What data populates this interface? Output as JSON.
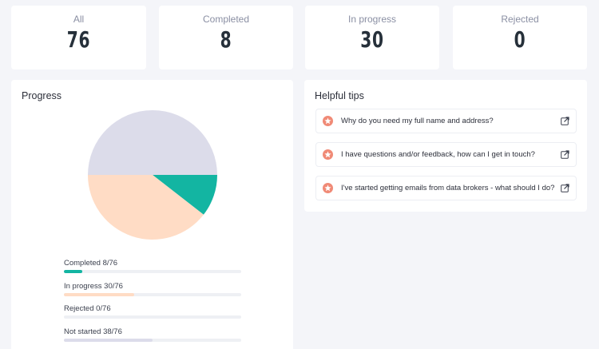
{
  "stats": [
    {
      "label": "All",
      "value": "76"
    },
    {
      "label": "Completed",
      "value": "8"
    },
    {
      "label": "In progress",
      "value": "30"
    },
    {
      "label": "Rejected",
      "value": "0"
    }
  ],
  "progress": {
    "title": "Progress",
    "total": 76,
    "items": [
      {
        "label": "Completed 8/76",
        "count": 8,
        "color": "#13b5a2"
      },
      {
        "label": "In progress 30/76",
        "count": 30,
        "color": "#ffdcc5"
      },
      {
        "label": "Rejected 0/76",
        "count": 0,
        "color": "#f08a76"
      },
      {
        "label": "Not started 38/76",
        "count": 38,
        "color": "#dcdcea"
      }
    ]
  },
  "chart_data": {
    "type": "pie",
    "categories": [
      "Completed",
      "In progress",
      "Rejected",
      "Not started"
    ],
    "values": [
      8,
      30,
      0,
      38
    ],
    "colors": [
      "#13b5a2",
      "#ffdcc5",
      "#f08a76",
      "#dcdcea"
    ],
    "title": "Progress"
  },
  "tips": {
    "title": "Helpful tips",
    "items": [
      {
        "text": "Why do you need my full name and address?"
      },
      {
        "text": "I have questions and/or feedback, how can I get in touch?"
      },
      {
        "text": "I've started getting emails from data brokers - what should I do?"
      }
    ]
  },
  "icons": {
    "tip": "star-icon",
    "link": "external-link-icon"
  }
}
